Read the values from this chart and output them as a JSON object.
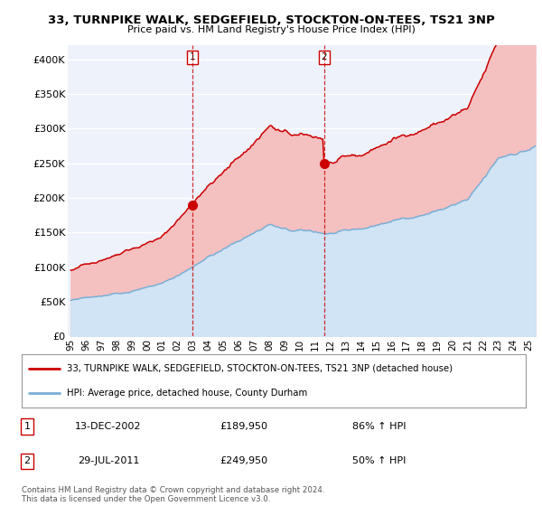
{
  "title": "33, TURNPIKE WALK, SEDGEFIELD, STOCKTON-ON-TEES, TS21 3NP",
  "subtitle": "Price paid vs. HM Land Registry's House Price Index (HPI)",
  "ylim": [
    0,
    420000
  ],
  "yticks": [
    0,
    50000,
    100000,
    150000,
    200000,
    250000,
    300000,
    350000,
    400000
  ],
  "ytick_labels": [
    "£0",
    "£50K",
    "£100K",
    "£150K",
    "£200K",
    "£250K",
    "£300K",
    "£350K",
    "£400K"
  ],
  "sale1_date_x": 2002.95,
  "sale1_price": 189950,
  "sale1_date_str": "13-DEC-2002",
  "sale1_amount_str": "£189,950",
  "sale1_hpi_str": "86% ↑ HPI",
  "sale2_date_x": 2011.58,
  "sale2_price": 249950,
  "sale2_date_str": "29-JUL-2011",
  "sale2_amount_str": "£249,950",
  "sale2_hpi_str": "50% ↑ HPI",
  "house_line_color": "#cc0000",
  "hpi_line_color": "#7aaed6",
  "sale_marker_color": "#cc0000",
  "vline_color": "#cc0000",
  "fill_color_house": "#f5c0c0",
  "fill_color_hpi": "#d0e4f5",
  "bg_color": "#edf2fb",
  "legend1_label": "33, TURNPIKE WALK, SEDGEFIELD, STOCKTON-ON-TEES, TS21 3NP (detached house)",
  "legend2_label": "HPI: Average price, detached house, County Durham",
  "footer": "Contains HM Land Registry data © Crown copyright and database right 2024.\nThis data is licensed under the Open Government Licence v3.0.",
  "xmin": 1995,
  "xmax": 2025.5,
  "seed": 42
}
